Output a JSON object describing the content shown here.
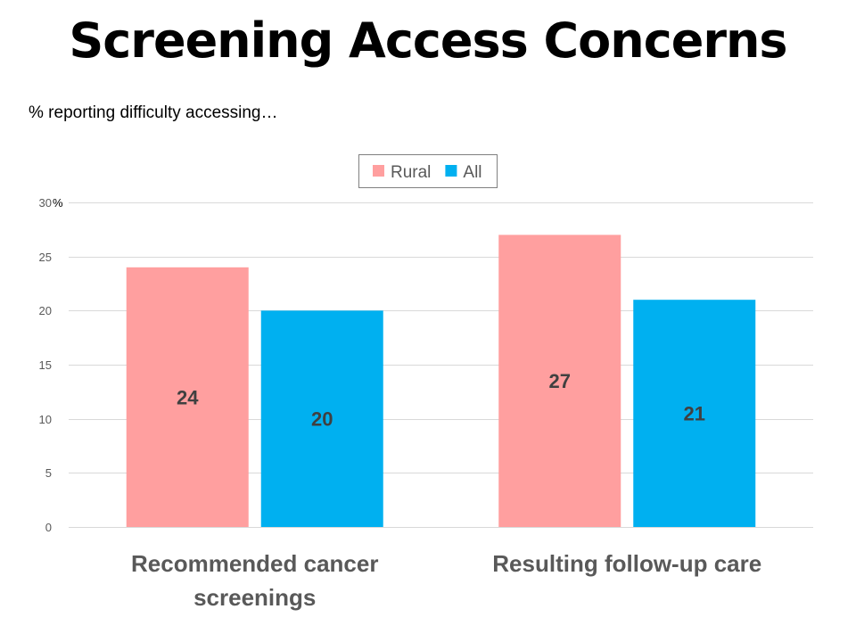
{
  "title": "Screening Access Concerns",
  "subtitle": "% reporting difficulty accessing…",
  "chart_data": {
    "type": "bar",
    "categories": [
      [
        "Recommended cancer",
        "screenings"
      ],
      [
        "Resulting follow-up care"
      ]
    ],
    "series": [
      {
        "name": "Rural",
        "color": "#FF9F9F",
        "values": [
          24,
          27
        ]
      },
      {
        "name": "All",
        "color": "#00B0F0",
        "values": [
          20,
          21
        ]
      }
    ],
    "ylim": [
      0,
      30
    ],
    "yticks": [
      0,
      5,
      10,
      15,
      20,
      25,
      30
    ],
    "y_unit": "%",
    "grid": true,
    "legend": "top-center",
    "data_labels": true
  }
}
